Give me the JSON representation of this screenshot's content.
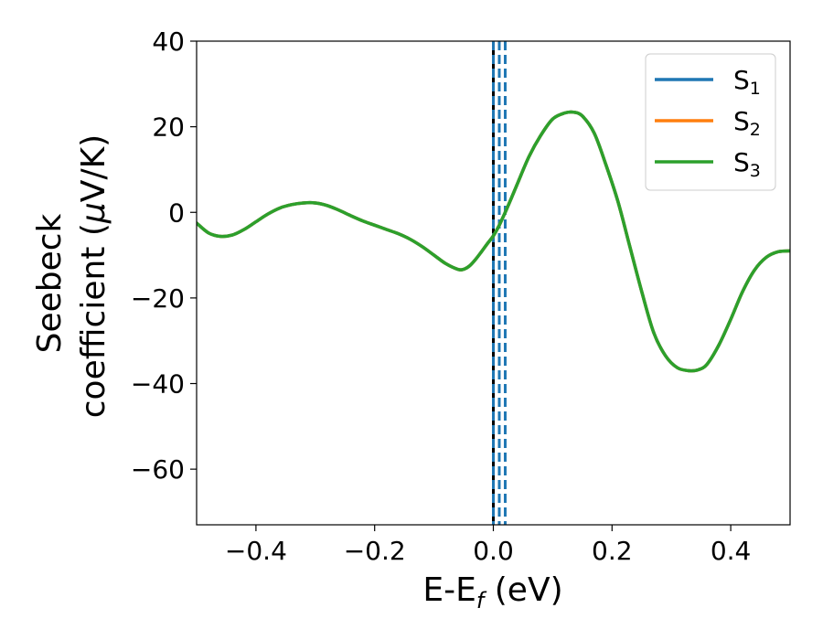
{
  "chart_data": {
    "type": "line",
    "xlabel": "E-E",
    "xlabel_sub": "f",
    "xlabel_unit": " (eV)",
    "ylabel_line1": "Seebeck",
    "ylabel_line2": "coefficient  (",
    "ylabel_mu": "μ",
    "ylabel_unit": "V/K)",
    "xlim": [
      -0.5,
      0.5
    ],
    "ylim": [
      -73,
      40
    ],
    "x_ticks": [
      -0.4,
      -0.2,
      0.0,
      0.2,
      0.4
    ],
    "x_tick_labels": [
      "−0.4",
      "−0.2",
      "0.0",
      "0.2",
      "0.4"
    ],
    "y_ticks": [
      40,
      20,
      0,
      -20,
      -40,
      -60
    ],
    "y_tick_labels": [
      "40",
      "20",
      "0",
      "−20",
      "−40",
      "−60"
    ],
    "legend_position": "top-right",
    "series": [
      {
        "name": "S",
        "sub": "1",
        "color": "#1f77b4"
      },
      {
        "name": "S",
        "sub": "2",
        "color": "#ff7f0e"
      },
      {
        "name": "S",
        "sub": "3",
        "color": "#2ca02c"
      }
    ],
    "curve": {
      "x": [
        -0.5,
        -0.48,
        -0.46,
        -0.44,
        -0.42,
        -0.4,
        -0.38,
        -0.36,
        -0.34,
        -0.32,
        -0.3,
        -0.28,
        -0.26,
        -0.24,
        -0.22,
        -0.2,
        -0.18,
        -0.16,
        -0.14,
        -0.12,
        -0.1,
        -0.08,
        -0.06,
        -0.05,
        -0.04,
        -0.03,
        -0.02,
        -0.01,
        0.0,
        0.01,
        0.02,
        0.03,
        0.04,
        0.06,
        0.08,
        0.1,
        0.12,
        0.135,
        0.15,
        0.17,
        0.19,
        0.21,
        0.23,
        0.25,
        0.27,
        0.29,
        0.31,
        0.33,
        0.345,
        0.36,
        0.38,
        0.4,
        0.42,
        0.44,
        0.46,
        0.48,
        0.5
      ],
      "y": [
        -2.5,
        -4.8,
        -5.6,
        -5.3,
        -4.0,
        -2.2,
        -0.4,
        1.0,
        1.8,
        2.2,
        2.2,
        1.6,
        0.5,
        -0.8,
        -2.0,
        -3.0,
        -4.0,
        -5.0,
        -6.3,
        -8.0,
        -10.0,
        -12.0,
        -13.3,
        -13.3,
        -12.5,
        -11.0,
        -9.2,
        -7.3,
        -5.5,
        -3.0,
        0.0,
        3.2,
        6.5,
        13.0,
        18.0,
        21.8,
        23.2,
        23.4,
        22.5,
        18.5,
        11.0,
        2.5,
        -8.0,
        -18.5,
        -28.0,
        -33.5,
        -36.3,
        -37.0,
        -36.8,
        -35.5,
        -31.0,
        -25.0,
        -18.5,
        -13.5,
        -10.5,
        -9.2,
        -9.0
      ]
    },
    "reference_lines": {
      "solid_x": 0.0,
      "solid_color": "#000000",
      "dashed_x": [
        0.0,
        0.01,
        0.02
      ],
      "dashed_color": "#1f77b4"
    }
  }
}
